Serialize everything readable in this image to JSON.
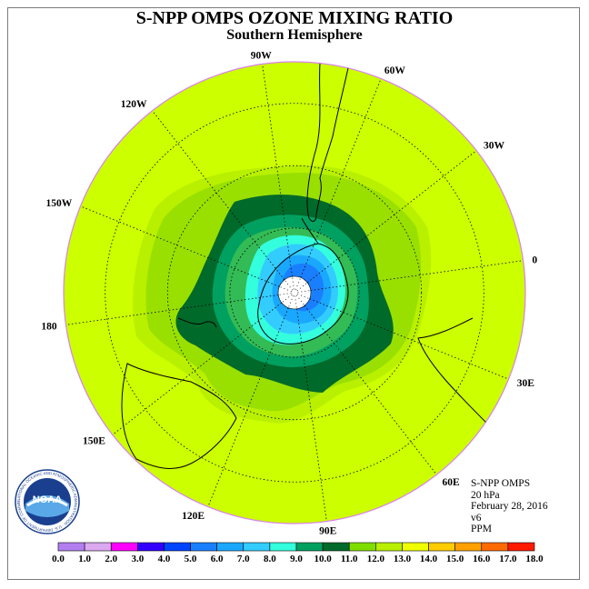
{
  "title": "S-NPP OMPS OZONE MIXING RATIO",
  "subtitle": "Southern Hemisphere",
  "longitude_labels": [
    {
      "text": "90W",
      "lon": -90
    },
    {
      "text": "60W",
      "lon": -60
    },
    {
      "text": "30W",
      "lon": -30
    },
    {
      "text": "0",
      "lon": 0
    },
    {
      "text": "30E",
      "lon": 30
    },
    {
      "text": "60E",
      "lon": 60
    },
    {
      "text": "90E",
      "lon": 90
    },
    {
      "text": "120E",
      "lon": 120
    },
    {
      "text": "150E",
      "lon": 150
    },
    {
      "text": "180",
      "lon": 180
    },
    {
      "text": "150W",
      "lon": -150
    },
    {
      "text": "120W",
      "lon": -120
    }
  ],
  "info": {
    "instrument": "S-NPP OMPS",
    "level": "20 hPa",
    "date": "February 28, 2016",
    "version": "v6",
    "units": "PPM"
  },
  "logo": {
    "text": "NOAA",
    "ring_text": "NATIONAL OCEANIC AND ATMOSPHERIC ADMINISTRATION · U.S. DEPARTMENT OF COMMERCE"
  },
  "colorbar": {
    "ticks": [
      "0.0",
      "1.0",
      "2.0",
      "3.0",
      "4.0",
      "5.0",
      "6.0",
      "7.0",
      "8.0",
      "9.0",
      "10.0",
      "11.0",
      "12.0",
      "13.0",
      "14.0",
      "15.0",
      "16.0",
      "17.0",
      "18.0"
    ],
    "colors": [
      "#b37ff0",
      "#dca8f0",
      "#ff00ff",
      "#3300ff",
      "#0044ff",
      "#1a7fff",
      "#1aa8ff",
      "#33ccff",
      "#33ffdd",
      "#00a060",
      "#006a2a",
      "#7fdd00",
      "#b8f000",
      "#f0ff00",
      "#ffcc00",
      "#ffa000",
      "#ff6a00",
      "#ff1a00",
      "#996644"
    ]
  },
  "field": {
    "background_value": 12.5,
    "levels": [
      {
        "name": "11-12 ppm band",
        "color": "#7fdd00"
      },
      {
        "name": "10-11 ppm band",
        "color": "#b8f000"
      },
      {
        "name": "9-10 ppm band",
        "color": "#006a2a"
      },
      {
        "name": "8-9 ppm band",
        "color": "#00a060"
      },
      {
        "name": "7-8 ppm band",
        "color": "#33ffdd"
      },
      {
        "name": "6-7 ppm band",
        "color": "#33ccff"
      },
      {
        "name": "5-6 ppm band",
        "color": "#1aa8ff"
      },
      {
        "name": "4-5 ppm band",
        "color": "#1a7fff"
      }
    ]
  },
  "colors": {
    "disc_fill": "#ccff00",
    "disc_edge": "#d980f0",
    "pole_cap": "#ffffff"
  }
}
